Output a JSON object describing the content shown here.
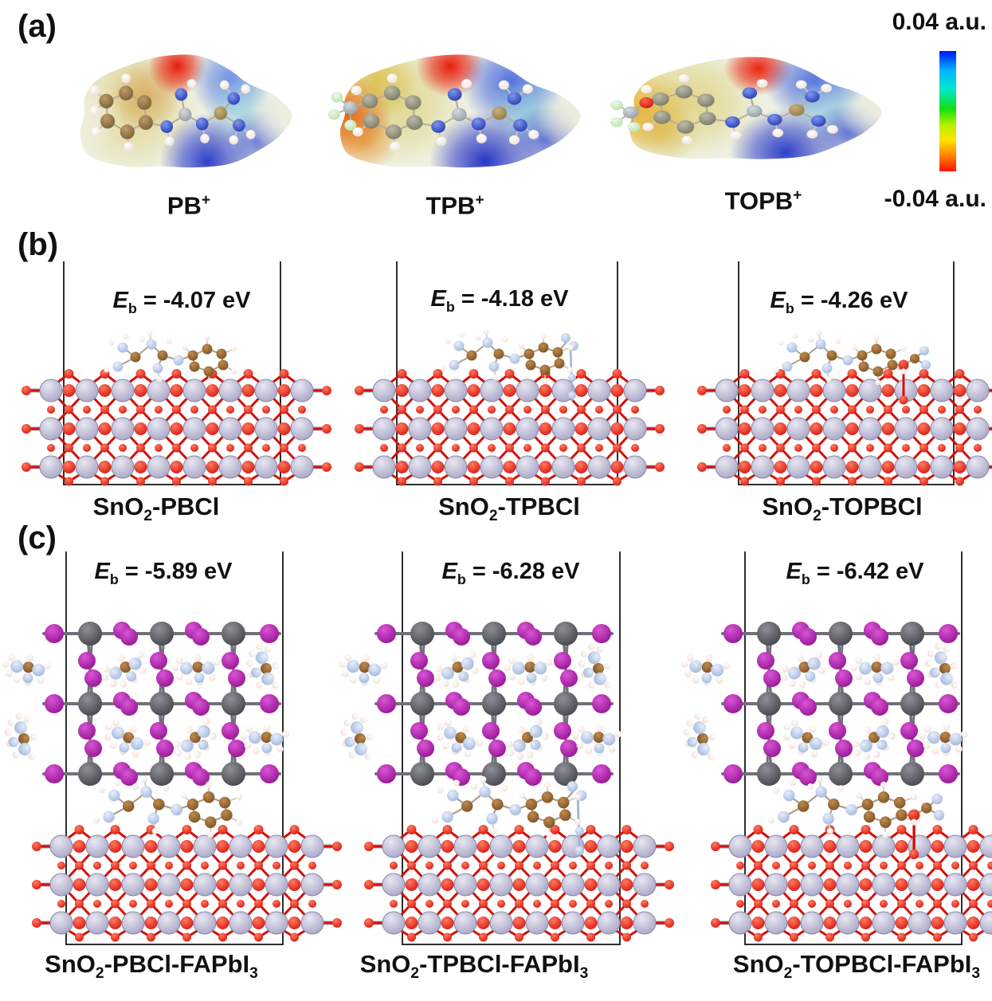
{
  "panel_a": {
    "label": "(a)",
    "molecules": [
      {
        "variant": "pb",
        "label_parts": [
          {
            "t": "PB"
          },
          {
            "t": "+",
            "sup": true
          }
        ]
      },
      {
        "variant": "tpb",
        "label_parts": [
          {
            "t": "TPB"
          },
          {
            "t": "+",
            "sup": true
          }
        ]
      },
      {
        "variant": "topb",
        "label_parts": [
          {
            "t": "TOPB"
          },
          {
            "t": "+",
            "sup": true
          }
        ]
      }
    ],
    "colorbar": {
      "top_label": "0.04 a.u.",
      "bottom_label": "-0.04 a.u.",
      "gradient_top_to_bottom": [
        "#0013ff",
        "#00b4ff",
        "#00e8c8",
        "#12e012",
        "#b8f000",
        "#ffe400",
        "#ff8a00",
        "#ff1200"
      ]
    }
  },
  "panel_b": {
    "label": "(b)",
    "items": [
      {
        "variant": "pb",
        "eb_parts": [
          {
            "t": "E",
            "i": true
          },
          {
            "t": "b",
            "sub": true
          },
          {
            "t": " = -4.07 eV"
          }
        ],
        "label_parts": [
          {
            "t": "SnO"
          },
          {
            "t": "2",
            "sub": true
          },
          {
            "t": "-PBCl"
          }
        ]
      },
      {
        "variant": "tpb",
        "eb_parts": [
          {
            "t": "E",
            "i": true
          },
          {
            "t": "b",
            "sub": true
          },
          {
            "t": " = -4.18 eV"
          }
        ],
        "label_parts": [
          {
            "t": "SnO"
          },
          {
            "t": "2",
            "sub": true
          },
          {
            "t": "-TPBCl"
          }
        ]
      },
      {
        "variant": "topb",
        "eb_parts": [
          {
            "t": "E",
            "i": true
          },
          {
            "t": "b",
            "sub": true
          },
          {
            "t": " = -4.26 eV"
          }
        ],
        "label_parts": [
          {
            "t": "SnO"
          },
          {
            "t": "2",
            "sub": true
          },
          {
            "t": "-TOPBCl"
          }
        ]
      }
    ]
  },
  "panel_c": {
    "label": "(c)",
    "items": [
      {
        "variant": "pb",
        "eb_parts": [
          {
            "t": "E",
            "i": true
          },
          {
            "t": "b",
            "sub": true
          },
          {
            "t": " = -5.89 eV"
          }
        ],
        "label_parts": [
          {
            "t": "SnO"
          },
          {
            "t": "2",
            "sub": true
          },
          {
            "t": "-PBCl-FAPbI"
          },
          {
            "t": "3",
            "sub": true
          }
        ]
      },
      {
        "variant": "tpb",
        "eb_parts": [
          {
            "t": "E",
            "i": true
          },
          {
            "t": "b",
            "sub": true
          },
          {
            "t": " = -6.28 eV"
          }
        ],
        "label_parts": [
          {
            "t": "SnO"
          },
          {
            "t": "2",
            "sub": true
          },
          {
            "t": "-TPBCl-FAPbI"
          },
          {
            "t": "3",
            "sub": true
          }
        ]
      },
      {
        "variant": "topb",
        "eb_parts": [
          {
            "t": "E",
            "i": true
          },
          {
            "t": "b",
            "sub": true
          },
          {
            "t": " = -6.42 eV"
          }
        ],
        "label_parts": [
          {
            "t": "SnO"
          },
          {
            "t": "2",
            "sub": true
          },
          {
            "t": "-TOPBCl-FAPbI"
          },
          {
            "t": "3",
            "sub": true
          }
        ]
      }
    ]
  },
  "colors": {
    "box_line": "#2e2e2e",
    "atoms": {
      "sn": {
        "hi": "#e8e7f2",
        "lo": "#a09ec0"
      },
      "o": {
        "hi": "#ff7a60",
        "lo": "#d40f0a"
      },
      "i": {
        "hi": "#d955d5",
        "lo": "#8e0f8c"
      },
      "pb": {
        "hi": "#8f8f97",
        "lo": "#3d3d44"
      },
      "c": {
        "hi": "#c08a4c",
        "lo": "#744d22"
      },
      "n": {
        "hi": "#e6eefb",
        "lo": "#9db3da"
      },
      "h": {
        "hi": "#ffffff",
        "lo": "#efdcd3"
      },
      "f": {
        "hi": "#eefae8",
        "lo": "#b2dfa4"
      },
      "cg": {
        "hi": "#d6dade",
        "lo": "#8c9399"
      },
      "ct": {
        "hi": "#c9b379",
        "lo": "#8a7440"
      },
      "nb": {
        "hi": "#7f96ef",
        "lo": "#1e33ab"
      },
      "ringb": {
        "hi": "#bd9c6b",
        "lo": "#73592f"
      },
      "ringg": {
        "hi": "#bcbca8",
        "lo": "#72725e"
      },
      "ox": {
        "hi": "#ff6a50",
        "lo": "#c90d06"
      }
    }
  }
}
